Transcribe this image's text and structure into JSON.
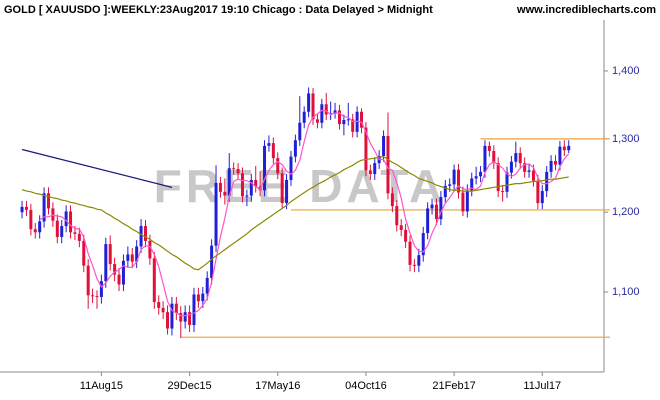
{
  "chart_data": {
    "type": "candlestick",
    "title": "GOLD [ XAUUSDO ]:WEEKLY:23Aug2017 19:10 Chicago : Data Delayed > Midnight",
    "source": "www.incrediblecharts.com",
    "watermark": "FREE DATA",
    "log_scale": true,
    "xlim": [
      -5,
      132
    ],
    "xticks": [
      {
        "value": 18,
        "label": "11Aug15"
      },
      {
        "value": 38,
        "label": "29Dec15"
      },
      {
        "value": 58,
        "label": "17May16"
      },
      {
        "value": 78,
        "label": "04Oct16"
      },
      {
        "value": 98,
        "label": "21Feb17"
      },
      {
        "value": 118,
        "label": "11Jul17"
      }
    ],
    "ylim": [
      1008,
      1480
    ],
    "yticks": [
      {
        "value": 1100,
        "label": "1,100"
      },
      {
        "value": 1200,
        "label": "1,200"
      },
      {
        "value": 1300,
        "label": "1,300"
      },
      {
        "value": 1400,
        "label": "1,400"
      }
    ],
    "up_color": "#1f1fd6",
    "down_color": "#e0103a",
    "open": [
      1200,
      1207,
      1203,
      1178,
      1174,
      1188,
      1225,
      1205,
      1189,
      1168,
      1182,
      1201,
      1174,
      1172,
      1163,
      1132,
      1096,
      1095,
      1094,
      1113,
      1159,
      1134,
      1121,
      1109,
      1138,
      1146,
      1137,
      1156,
      1182,
      1163,
      1141,
      1088,
      1081,
      1076,
      1057,
      1086,
      1075,
      1065,
      1076,
      1061,
      1097,
      1089,
      1098,
      1117,
      1157,
      1239,
      1227,
      1222,
      1259,
      1258,
      1252,
      1221,
      1222,
      1243,
      1234,
      1229,
      1290,
      1294,
      1273,
      1252,
      1212,
      1243,
      1275,
      1298,
      1323,
      1339,
      1366,
      1328,
      1323,
      1350,
      1335,
      1337,
      1341,
      1321,
      1327,
      1328,
      1310,
      1339,
      1316,
      1256,
      1251,
      1266,
      1276,
      1304,
      1225,
      1208,
      1183,
      1177,
      1162,
      1133,
      1132,
      1145,
      1173,
      1205,
      1210,
      1191,
      1220,
      1235,
      1237,
      1257,
      1226,
      1201,
      1229,
      1245,
      1248,
      1254,
      1290,
      1283,
      1266,
      1228,
      1227,
      1253,
      1268,
      1280,
      1266,
      1254,
      1256,
      1242,
      1212,
      1228,
      1254,
      1269,
      1264,
      1289,
      1284
    ],
    "high": [
      1215,
      1215,
      1211,
      1186,
      1196,
      1233,
      1233,
      1213,
      1197,
      1190,
      1209,
      1209,
      1182,
      1180,
      1171,
      1140,
      1104,
      1102,
      1121,
      1167,
      1170,
      1142,
      1129,
      1146,
      1156,
      1154,
      1164,
      1191,
      1190,
      1171,
      1149,
      1096,
      1089,
      1084,
      1094,
      1094,
      1083,
      1084,
      1084,
      1105,
      1105,
      1106,
      1125,
      1165,
      1263,
      1247,
      1245,
      1280,
      1267,
      1266,
      1260,
      1230,
      1251,
      1262,
      1255,
      1298,
      1305,
      1302,
      1281,
      1260,
      1251,
      1283,
      1306,
      1362,
      1347,
      1375,
      1374,
      1336,
      1358,
      1367,
      1354,
      1352,
      1349,
      1335,
      1352,
      1336,
      1347,
      1344,
      1324,
      1264,
      1274,
      1284,
      1312,
      1338,
      1233,
      1216,
      1191,
      1185,
      1170,
      1140,
      1153,
      1181,
      1213,
      1218,
      1218,
      1228,
      1243,
      1245,
      1264,
      1265,
      1234,
      1237,
      1253,
      1261,
      1262,
      1298,
      1296,
      1291,
      1274,
      1236,
      1261,
      1276,
      1296,
      1288,
      1274,
      1264,
      1264,
      1250,
      1236,
      1262,
      1277,
      1277,
      1297,
      1298,
      1298
    ],
    "low": [
      1192,
      1195,
      1170,
      1166,
      1166,
      1180,
      1197,
      1181,
      1160,
      1160,
      1174,
      1166,
      1164,
      1155,
      1124,
      1080,
      1087,
      1080,
      1086,
      1105,
      1126,
      1113,
      1101,
      1101,
      1130,
      1129,
      1129,
      1148,
      1155,
      1133,
      1080,
      1073,
      1068,
      1050,
      1049,
      1067,
      1046,
      1057,
      1053,
      1053,
      1081,
      1081,
      1090,
      1109,
      1149,
      1219,
      1210,
      1214,
      1250,
      1244,
      1213,
      1208,
      1214,
      1226,
      1221,
      1221,
      1282,
      1265,
      1244,
      1204,
      1204,
      1235,
      1267,
      1290,
      1315,
      1331,
      1320,
      1315,
      1315,
      1327,
      1327,
      1329,
      1313,
      1305,
      1319,
      1302,
      1302,
      1308,
      1248,
      1243,
      1243,
      1258,
      1268,
      1217,
      1200,
      1175,
      1169,
      1154,
      1125,
      1124,
      1124,
      1137,
      1165,
      1197,
      1183,
      1183,
      1212,
      1227,
      1229,
      1218,
      1195,
      1193,
      1221,
      1237,
      1240,
      1246,
      1275,
      1258,
      1220,
      1214,
      1219,
      1245,
      1260,
      1258,
      1246,
      1246,
      1234,
      1204,
      1204,
      1220,
      1246,
      1256,
      1256,
      1276,
      1280
    ],
    "close": [
      1207,
      1203,
      1178,
      1174,
      1188,
      1225,
      1205,
      1189,
      1168,
      1182,
      1201,
      1174,
      1172,
      1163,
      1132,
      1096,
      1095,
      1094,
      1113,
      1159,
      1134,
      1121,
      1109,
      1138,
      1146,
      1137,
      1156,
      1182,
      1163,
      1141,
      1088,
      1081,
      1076,
      1057,
      1086,
      1075,
      1065,
      1076,
      1061,
      1097,
      1089,
      1098,
      1117,
      1157,
      1239,
      1227,
      1222,
      1259,
      1258,
      1252,
      1221,
      1222,
      1243,
      1234,
      1229,
      1290,
      1294,
      1273,
      1252,
      1212,
      1243,
      1275,
      1298,
      1323,
      1339,
      1366,
      1328,
      1323,
      1350,
      1335,
      1337,
      1341,
      1321,
      1327,
      1328,
      1310,
      1339,
      1316,
      1256,
      1251,
      1266,
      1276,
      1304,
      1225,
      1208,
      1183,
      1177,
      1162,
      1133,
      1132,
      1145,
      1173,
      1205,
      1210,
      1191,
      1220,
      1235,
      1237,
      1257,
      1226,
      1201,
      1229,
      1245,
      1248,
      1254,
      1290,
      1283,
      1266,
      1228,
      1227,
      1253,
      1268,
      1280,
      1266,
      1254,
      1256,
      1242,
      1212,
      1228,
      1254,
      1269,
      1264,
      1289,
      1284,
      1290
    ],
    "averages": [
      {
        "color": "#ff55cc",
        "values": [
          null,
          null,
          null,
          null,
          1190,
          1194,
          1194,
          1196,
          1195,
          1194,
          1189,
          1183,
          1179,
          1178,
          1168,
          1147,
          1132,
          1116,
          1106,
          1111,
          1119,
          1124,
          1127,
          1132,
          1130,
          1130,
          1137,
          1152,
          1157,
          1156,
          1146,
          1131,
          1110,
          1089,
          1078,
          1075,
          1072,
          1072,
          1073,
          1075,
          1078,
          1084,
          1092,
          1112,
          1140,
          1168,
          1192,
          1221,
          1241,
          1244,
          1242,
          1242,
          1239,
          1234,
          1230,
          1244,
          1256,
          1264,
          1268,
          1264,
          1255,
          1251,
          1256,
          1270,
          1296,
          1320,
          1331,
          1336,
          1341,
          1340,
          1335,
          1337,
          1337,
          1332,
          1331,
          1325,
          1325,
          1324,
          1310,
          1294,
          1283,
          1271,
          1271,
          1259,
          1256,
          1239,
          1219,
          1191,
          1173,
          1157,
          1150,
          1149,
          1157,
          1173,
          1185,
          1200,
          1212,
          1219,
          1228,
          1235,
          1231,
          1230,
          1232,
          1230,
          1235,
          1253,
          1264,
          1268,
          1264,
          1259,
          1251,
          1248,
          1251,
          1259,
          1264,
          1265,
          1260,
          1246,
          1238,
          1238,
          1241,
          1245,
          1261,
          1272,
          1279
        ]
      },
      {
        "color": "#8a8a00",
        "values": [
          1230,
          1228,
          1227,
          1225,
          1224,
          1222,
          1221,
          1219,
          1218,
          1216,
          1215,
          1213,
          1212,
          1210,
          1209,
          1207,
          1206,
          1204,
          1203,
          1199,
          1196,
          1192,
          1189,
          1185,
          1182,
          1178,
          1175,
          1171,
          1168,
          1165,
          1161,
          1158,
          1154,
          1150,
          1146,
          1143,
          1139,
          1135,
          1132,
          1128,
          1127,
          1131,
          1135,
          1140,
          1144,
          1148,
          1152,
          1156,
          1160,
          1164,
          1168,
          1172,
          1177,
          1181,
          1185,
          1189,
          1193,
          1197,
          1201,
          1205,
          1209,
          1214,
          1218,
          1222,
          1226,
          1230,
          1233,
          1237,
          1240,
          1243,
          1247,
          1250,
          1253,
          1257,
          1260,
          1263,
          1267,
          1270,
          1271,
          1272,
          1273,
          1274,
          1275,
          1271,
          1267,
          1264,
          1260,
          1256,
          1252,
          1249,
          1245,
          1243,
          1241,
          1239,
          1236,
          1234,
          1232,
          1230,
          1229,
          1229,
          1228,
          1228,
          1228,
          1229,
          1230,
          1231,
          1232,
          1233,
          1234,
          1235,
          1236,
          1237,
          1238,
          1238,
          1239,
          1240,
          1241,
          1241,
          1242,
          1243,
          1244,
          1244,
          1245,
          1246,
          1247
        ]
      }
    ],
    "levels": [
      {
        "value": 1300,
        "start": 104
      },
      {
        "value": 1203,
        "start": 61
      },
      {
        "value": 1047,
        "start": 36
      }
    ],
    "level_color": "#f0a030",
    "trendline": {
      "x": [
        0,
        34
      ],
      "y": [
        1285,
        1233
      ],
      "color": "#1a1a80"
    }
  }
}
